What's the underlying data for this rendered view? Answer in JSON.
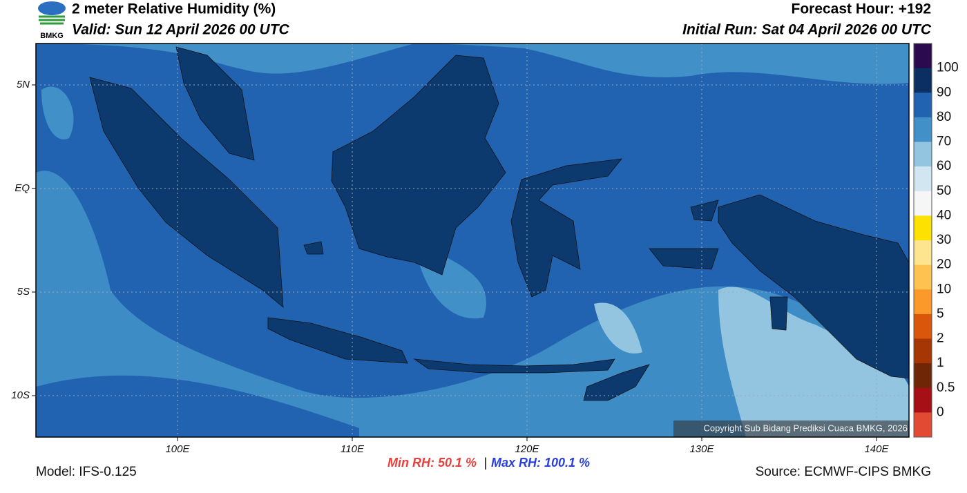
{
  "header": {
    "title": "2 meter Relative Humidity (%)",
    "valid": "Valid: Sun 12 April 2026 00 UTC",
    "forecast_hour": "Forecast Hour: +192",
    "initial_run": "Initial Run: Sat 04 April 2026 00 UTC",
    "logo_text": "BMKG"
  },
  "map": {
    "lat_labels": [
      "5N",
      "EQ",
      "5S",
      "10S"
    ],
    "lon_labels": [
      "100E",
      "110E",
      "120E",
      "130E",
      "140E"
    ],
    "copyright": "Copyright Sub Bidang Prediksi Cuaca BMKG, 2026"
  },
  "colorbar": {
    "labels": [
      "100",
      "90",
      "80",
      "70",
      "60",
      "50",
      "40",
      "30",
      "20",
      "10",
      "5",
      "2",
      "1",
      "0.5",
      "0"
    ],
    "colors": [
      "#2b0a4f",
      "#0c2f63",
      "#2163b0",
      "#4190c8",
      "#93c4e0",
      "#d2e6f1",
      "#f6f6f6",
      "#fde100",
      "#fde48f",
      "#fdc250",
      "#fb9a2a",
      "#d9560b",
      "#a63603",
      "#6e2606",
      "#a50f15",
      "#e34a33"
    ]
  },
  "footer": {
    "model": "Model: IFS-0.125",
    "min_rh": "Min RH:  50.1 %",
    "separator": "|",
    "max_rh": "Max RH: 100.1 %",
    "source": "Source: ECMWF-CIPS BMKG"
  }
}
